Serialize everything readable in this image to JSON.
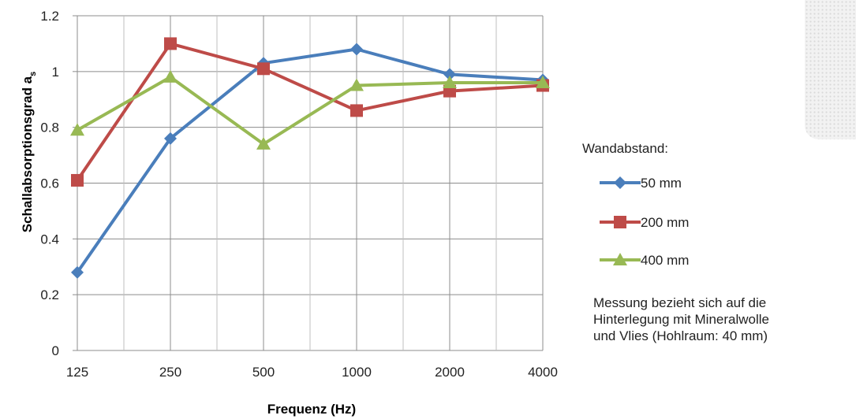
{
  "chart_data": {
    "type": "line",
    "title": "",
    "xlabel": "Frequenz (Hz)",
    "ylabel": "Schallabsorptionsgrad a",
    "ylabel_subscript": "s",
    "categories": [
      "125",
      "250",
      "500",
      "1000",
      "2000",
      "4000"
    ],
    "ylim": [
      0,
      1.2
    ],
    "yticks": [
      "0",
      "0.2",
      "0.4",
      "0.6",
      "0.8",
      "1",
      "1.2"
    ],
    "grid": true,
    "legend_title": "Wandabstand:",
    "legend_position": "right",
    "series": [
      {
        "name": "50 mm",
        "color": "#4a7ebb",
        "marker": "diamond",
        "values": [
          0.28,
          0.76,
          1.03,
          1.08,
          0.99,
          0.97
        ]
      },
      {
        "name": "200 mm",
        "color": "#be4b48",
        "marker": "square",
        "values": [
          0.61,
          1.1,
          1.01,
          0.86,
          0.93,
          0.95
        ]
      },
      {
        "name": "400 mm",
        "color": "#98b954",
        "marker": "triangle",
        "values": [
          0.79,
          0.98,
          0.74,
          0.95,
          0.96,
          0.96
        ]
      }
    ]
  },
  "note": {
    "lines": [
      "Messung bezieht sich auf die",
      "Hinterlegung mit Mineralwolle",
      "und Vlies (Hohlraum: 40 mm)"
    ]
  },
  "thumbnail": {
    "icon": "fabric-texture-swatch"
  }
}
